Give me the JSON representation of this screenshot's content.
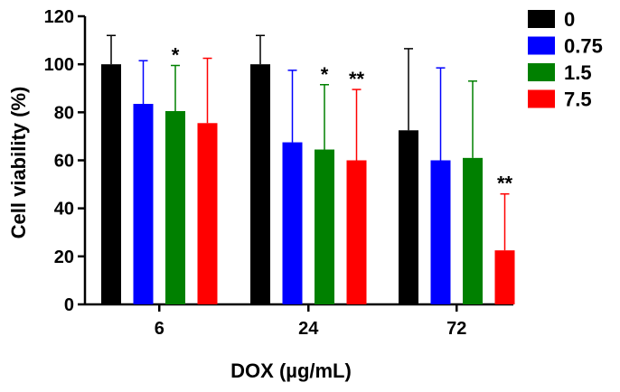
{
  "chart_data": {
    "type": "bar",
    "title": "",
    "xlabel": "DOX (µg/mL)",
    "ylabel": "Cell viability (%)",
    "ylim": [
      0,
      120
    ],
    "yticks": [
      0,
      20,
      40,
      60,
      80,
      100,
      120
    ],
    "categories": [
      "6",
      "24",
      "72"
    ],
    "grid": false,
    "legend_position": "top-right",
    "series": [
      {
        "name": "0",
        "color": "#000000",
        "values": [
          100,
          100,
          72.5
        ],
        "error": [
          12,
          12,
          34
        ]
      },
      {
        "name": "0.75",
        "color": "#0000ff",
        "values": [
          83.5,
          67.5,
          60
        ],
        "error": [
          18,
          30,
          38.5
        ]
      },
      {
        "name": "1.5",
        "color": "#008000",
        "values": [
          80.5,
          64.5,
          61
        ],
        "error": [
          19,
          27,
          32
        ]
      },
      {
        "name": "7.5",
        "color": "#ff0000",
        "values": [
          75.5,
          60,
          22.5
        ],
        "error": [
          27,
          29.5,
          23.5
        ]
      }
    ],
    "significance": [
      [
        "",
        "",
        "*",
        ""
      ],
      [
        "",
        "",
        "*",
        "**"
      ],
      [
        "",
        "",
        "",
        "**"
      ]
    ]
  }
}
